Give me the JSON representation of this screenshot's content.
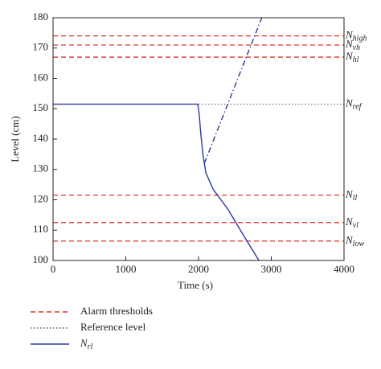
{
  "chart_data": {
    "type": "line",
    "xlabel": "Time (s)",
    "ylabel": "Level (cm)",
    "xlim": [
      0,
      4000
    ],
    "ylim": [
      100,
      180
    ],
    "xticks": [
      0,
      1000,
      2000,
      3000,
      4000
    ],
    "yticks": [
      100,
      110,
      120,
      130,
      140,
      150,
      160,
      170,
      180
    ],
    "thresholds": {
      "name": "Alarm thresholds",
      "color": "#e03030",
      "levels": [
        {
          "label": "N",
          "sub": "high",
          "value": 174
        },
        {
          "label": "N",
          "sub": "vh",
          "value": 171
        },
        {
          "label": "N",
          "sub": "hl",
          "value": 167
        },
        {
          "label": "N",
          "sub": "ll",
          "value": 121.5
        },
        {
          "label": "N",
          "sub": "vl",
          "value": 112.5
        },
        {
          "label": "N",
          "sub": "low",
          "value": 106.4
        }
      ]
    },
    "reference": {
      "name": "Reference level",
      "color": "#555555",
      "label": "N",
      "sub": "ref",
      "value": 151.5
    },
    "series": [
      {
        "name": "N",
        "sub": "rl",
        "color": "#2b3a9e",
        "style": "solid",
        "x": [
          0,
          1990,
          2010,
          2030,
          2060,
          2100,
          2200,
          2400,
          2600,
          2830
        ],
        "values": [
          151.5,
          151.5,
          148,
          142,
          135,
          129,
          123.5,
          117,
          109,
          100
        ]
      },
      {
        "color": "#2b3a9e",
        "style": "dashdot",
        "x": [
          2080,
          2870
        ],
        "values": [
          132,
          180
        ]
      }
    ]
  }
}
